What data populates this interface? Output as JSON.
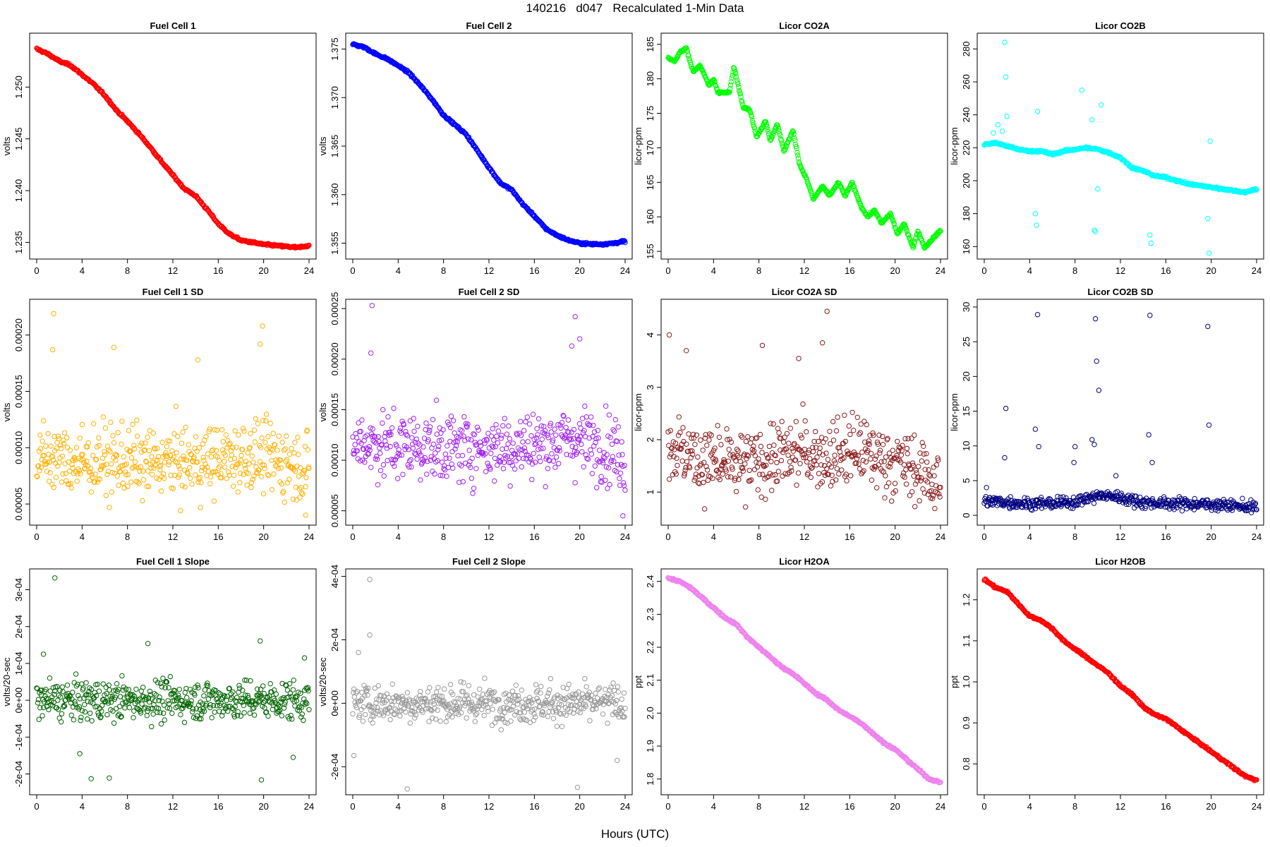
{
  "figure_title": "140216   d047   Recalculated 1-Min Data",
  "shared_xlabel": "Hours (UTC)",
  "chart_data": [
    {
      "type": "scatter",
      "title": "Fuel Cell 1",
      "ylabel": "volts",
      "color": "#ff0000",
      "xlim": [
        0,
        24
      ],
      "ylim": [
        1.2338,
        1.2548
      ],
      "xticks": [
        0,
        4,
        8,
        12,
        16,
        20,
        24
      ],
      "yticks": [
        1.235,
        1.24,
        1.245,
        1.25
      ],
      "ytick_labels": [
        "1.235",
        "1.240",
        "1.245",
        "1.250"
      ],
      "x": [
        0,
        1,
        2,
        3,
        4,
        5,
        6,
        7,
        8,
        9,
        10,
        11,
        12,
        13,
        14,
        15,
        16,
        17,
        18,
        19,
        20,
        21,
        22,
        23,
        24
      ],
      "y": [
        1.2537,
        1.2532,
        1.2525,
        1.2521,
        1.2512,
        1.2503,
        1.2492,
        1.2478,
        1.2467,
        1.2455,
        1.2442,
        1.2428,
        1.2415,
        1.2402,
        1.2395,
        1.2382,
        1.2368,
        1.2358,
        1.2352,
        1.235,
        1.2348,
        1.2347,
        1.2346,
        1.2345,
        1.2347
      ]
    },
    {
      "type": "scatter",
      "title": "Fuel Cell 2",
      "ylabel": "volts",
      "color": "#0000ff",
      "xlim": [
        0,
        24
      ],
      "ylim": [
        1.3538,
        1.3762
      ],
      "xticks": [
        0,
        4,
        8,
        12,
        16,
        20,
        24
      ],
      "yticks": [
        1.355,
        1.36,
        1.365,
        1.37,
        1.375
      ],
      "ytick_labels": [
        "1.355",
        "1.360",
        "1.365",
        "1.370",
        "1.375"
      ],
      "x": [
        0,
        1,
        2,
        3,
        4,
        5,
        6,
        7,
        8,
        9,
        10,
        11,
        12,
        13,
        14,
        15,
        16,
        17,
        18,
        19,
        20,
        21,
        22,
        23,
        24
      ],
      "y": [
        1.3755,
        1.3752,
        1.3745,
        1.374,
        1.3733,
        1.3725,
        1.3712,
        1.3698,
        1.3682,
        1.3672,
        1.3662,
        1.3645,
        1.3628,
        1.3612,
        1.3605,
        1.359,
        1.3578,
        1.3565,
        1.3558,
        1.3553,
        1.355,
        1.3549,
        1.3549,
        1.355,
        1.3552
      ]
    },
    {
      "type": "scatter",
      "title": "Licor CO2A",
      "ylabel": "licor-ppm",
      "color": "#00ff00",
      "xlim": [
        0,
        24
      ],
      "ylim": [
        154.5,
        186
      ],
      "xticks": [
        0,
        4,
        8,
        12,
        16,
        20,
        24
      ],
      "yticks": [
        155,
        160,
        165,
        170,
        175,
        180,
        185
      ],
      "ytick_labels": [
        "155",
        "160",
        "165",
        "170",
        "175",
        "180",
        "185"
      ],
      "x": [
        0,
        0.6,
        1.0,
        1.6,
        2.2,
        2.8,
        3.6,
        4.0,
        4.4,
        5.4,
        5.8,
        6.6,
        7.2,
        7.8,
        8.6,
        9.0,
        9.6,
        10.2,
        11.0,
        11.6,
        12.2,
        12.8,
        13.6,
        14.2,
        15.0,
        15.6,
        16.2,
        17.0,
        17.6,
        18.2,
        18.8,
        19.6,
        20.2,
        20.8,
        21.6,
        22.0,
        22.6,
        23.4,
        24
      ],
      "y": [
        183.0,
        182.5,
        183.8,
        184.5,
        181.0,
        182.0,
        179.0,
        180.0,
        178.0,
        178.0,
        181.8,
        176.0,
        175.5,
        171.5,
        174.0,
        171.0,
        173.5,
        169.5,
        172.5,
        167.5,
        165.5,
        162.5,
        164.5,
        163.0,
        165.0,
        163.0,
        165.0,
        161.5,
        160.0,
        161.0,
        159.0,
        160.5,
        157.5,
        159.0,
        155.5,
        158.0,
        155.5,
        157.0,
        158.0
      ]
    },
    {
      "type": "scatter",
      "title": "Licor CO2B",
      "ylabel": "licor-ppm",
      "color": "#00ffff",
      "xlim": [
        0,
        24
      ],
      "ylim": [
        155,
        287
      ],
      "xticks": [
        0,
        4,
        8,
        12,
        16,
        20,
        24
      ],
      "yticks": [
        160,
        180,
        200,
        220,
        240,
        260,
        280
      ],
      "ytick_labels": [
        "160",
        "180",
        "200",
        "220",
        "240",
        "260",
        "280"
      ],
      "x": [
        0,
        1,
        2,
        3,
        4,
        5,
        6,
        7,
        8,
        9,
        10,
        11,
        12,
        13,
        14,
        15,
        16,
        17,
        18,
        19,
        20,
        21,
        22,
        23,
        24
      ],
      "y": [
        222,
        223,
        221,
        219,
        218,
        218,
        216,
        218,
        219,
        220,
        219,
        217,
        214,
        208,
        206,
        203,
        202,
        200,
        198,
        197,
        196,
        195,
        194,
        193,
        195
      ],
      "outliers_x": [
        1.8,
        1.9,
        4.5,
        4.6,
        4.7,
        9.7,
        9.8,
        10.0,
        14.6,
        14.7,
        19.8,
        19.9,
        1.6,
        2.0,
        9.5,
        10.3,
        8.6,
        0.8,
        1.2,
        19.7
      ],
      "outliers_y": [
        284,
        263,
        180,
        173,
        242,
        170,
        169,
        195,
        167,
        162,
        156,
        224,
        230,
        239,
        237,
        246,
        255,
        229,
        234,
        177
      ]
    },
    {
      "type": "scatter",
      "title": "Fuel Cell 1 SD",
      "ylabel": "volts",
      "color": "#ffb000",
      "xlim": [
        0,
        24
      ],
      "ylim": [
        3.5e-05,
        0.000228
      ],
      "xticks": [
        0,
        4,
        8,
        12,
        16,
        20,
        24
      ],
      "yticks": [
        5e-05,
        0.0001,
        0.00015,
        0.0002
      ],
      "ytick_labels": [
        "0.00005",
        "0.00010",
        "0.00015",
        "0.00020"
      ],
      "x": [
        0,
        1,
        2,
        3,
        4,
        5,
        6,
        7,
        8,
        9,
        10,
        11,
        12,
        13,
        14,
        15,
        16,
        17,
        18,
        19,
        20,
        21,
        22,
        23,
        24
      ],
      "y": [
        8.8e-05,
        9.2e-05,
        9e-05,
        8.7e-05,
        8.6e-05,
        8.9e-05,
        8.8e-05,
        8.7e-05,
        8.9e-05,
        8.6e-05,
        8.5e-05,
        8.7e-05,
        8.8e-05,
        8.6e-05,
        8.7e-05,
        8.8e-05,
        8.9e-05,
        9e-05,
        9.2e-05,
        9.4e-05,
        9.1e-05,
        8.9e-05,
        8.7e-05,
        8.5e-05,
        8e-05
      ],
      "spread": 2.6e-05,
      "outliers_x": [
        1.5,
        1.4,
        6.8,
        19.9,
        19.7,
        14.2,
        23.7
      ],
      "outliers_y": [
        0.000219,
        0.000187,
        0.000189,
        0.000208,
        0.000192,
        0.000178,
        4e-05
      ]
    },
    {
      "type": "scatter",
      "title": "Fuel Cell 2 SD",
      "ylabel": "volts",
      "color": "#a020f0",
      "xlim": [
        0,
        24
      ],
      "ylim": [
        4e-05,
        0.000255
      ],
      "xticks": [
        0,
        4,
        8,
        12,
        16,
        20,
        24
      ],
      "yticks": [
        5e-05,
        0.0001,
        0.00015,
        0.0002,
        0.00025
      ],
      "ytick_labels": [
        "0.00005",
        "0.00010",
        "0.00015",
        "0.00020",
        "0.00025"
      ],
      "x": [
        0,
        1,
        2,
        3,
        4,
        5,
        6,
        7,
        8,
        9,
        10,
        11,
        12,
        13,
        14,
        15,
        16,
        17,
        18,
        19,
        20,
        21,
        22,
        23,
        24
      ],
      "y": [
        0.000115,
        0.000118,
        0.000117,
        0.000114,
        0.000113,
        0.000115,
        0.000114,
        0.000112,
        0.000113,
        0.000111,
        0.000112,
        0.000113,
        0.000112,
        0.000114,
        0.000113,
        0.000115,
        0.000116,
        0.000117,
        0.000119,
        0.000121,
        0.00012,
        0.000117,
        0.000113,
        0.00011,
        0.0001
      ],
      "spread": 2.8e-05,
      "outliers_x": [
        1.7,
        1.6,
        19.6,
        20.0,
        19.3,
        23.8
      ],
      "outliers_y": [
        0.000253,
        0.000206,
        0.000242,
        0.00022,
        0.000213,
        4.5e-05
      ]
    },
    {
      "type": "scatter",
      "title": "Licor CO2A SD",
      "ylabel": "licor-ppm",
      "color": "#8b1a1a",
      "xlim": [
        0,
        24
      ],
      "ylim": [
        0.45,
        4.6
      ],
      "xticks": [
        0,
        4,
        8,
        12,
        16,
        20,
        24
      ],
      "yticks": [
        1,
        2,
        3,
        4
      ],
      "ytick_labels": [
        "1",
        "2",
        "3",
        "4"
      ],
      "x": [
        0,
        1,
        2,
        3,
        4,
        5,
        6,
        7,
        8,
        9,
        10,
        11,
        12,
        13,
        14,
        15,
        16,
        17,
        18,
        19,
        20,
        21,
        22,
        23,
        24
      ],
      "y": [
        1.9,
        1.8,
        1.7,
        1.6,
        1.6,
        1.5,
        1.5,
        1.5,
        1.6,
        1.6,
        1.7,
        1.7,
        1.8,
        1.7,
        1.7,
        1.7,
        1.8,
        1.8,
        1.7,
        1.6,
        1.6,
        1.5,
        1.4,
        1.3,
        1.1
      ],
      "spread": 0.55,
      "outliers_x": [
        0.1,
        14.0,
        11.5,
        8.3,
        1.6,
        13.6
      ],
      "outliers_y": [
        4.0,
        4.45,
        3.55,
        3.8,
        3.7,
        3.85
      ]
    },
    {
      "type": "scatter",
      "title": "Licor CO2B SD",
      "ylabel": "licor-ppm",
      "color": "#000080",
      "xlim": [
        0,
        24
      ],
      "ylim": [
        -0.8,
        30.5
      ],
      "xticks": [
        0,
        4,
        8,
        12,
        16,
        20,
        24
      ],
      "yticks": [
        0,
        5,
        10,
        15,
        20,
        25,
        30
      ],
      "ytick_labels": [
        "0",
        "5",
        "10",
        "15",
        "20",
        "25",
        "30"
      ],
      "x": [
        0,
        1,
        2,
        3,
        4,
        5,
        6,
        7,
        8,
        9,
        10,
        11,
        12,
        13,
        14,
        15,
        16,
        17,
        18,
        19,
        20,
        21,
        22,
        23,
        24
      ],
      "y": [
        2.0,
        2.0,
        1.9,
        1.8,
        1.7,
        1.7,
        1.7,
        1.8,
        2.0,
        2.4,
        2.8,
        2.8,
        2.6,
        2.2,
        1.9,
        1.8,
        1.7,
        1.7,
        1.7,
        1.6,
        1.6,
        1.5,
        1.4,
        1.3,
        1.1
      ],
      "spread": 0.7,
      "outliers_x": [
        4.7,
        9.8,
        9.9,
        14.6,
        19.7,
        1.9,
        4.5,
        1.8,
        10.1,
        19.8,
        14.5,
        4.8,
        9.5,
        7.9,
        8.0,
        9.7,
        11.6,
        14.8,
        0.2
      ],
      "outliers_y": [
        28.9,
        28.3,
        22.2,
        28.8,
        27.2,
        15.4,
        12.4,
        8.3,
        18.0,
        13.0,
        11.6,
        9.9,
        10.9,
        7.6,
        9.9,
        10.2,
        5.7,
        7.6,
        4.0
      ]
    },
    {
      "type": "scatter",
      "title": "Fuel Cell 1 Slope",
      "ylabel": "volts/20-sec",
      "color": "#006400",
      "xlim": [
        0,
        24
      ],
      "ylim": [
        -0.000245,
        0.000345
      ],
      "xticks": [
        0,
        4,
        8,
        12,
        16,
        20,
        24
      ],
      "yticks": [
        -0.0002,
        -0.0001,
        0,
        0.0001,
        0.0002,
        0.0003
      ],
      "ytick_labels": [
        "-2e-04",
        "-1e-04",
        "0e+00",
        "1e-04",
        "2e-04",
        "3e-04"
      ],
      "x": [
        0,
        2,
        4,
        6,
        8,
        10,
        12,
        14,
        16,
        18,
        20,
        22,
        24
      ],
      "y": [
        0,
        0,
        0,
        0,
        0,
        0,
        0,
        0,
        0,
        0,
        0,
        0,
        0
      ],
      "spread": 4.5e-05,
      "outliers_x": [
        1.6,
        4.8,
        6.4,
        19.7,
        19.8,
        9.8,
        0.6,
        3.8,
        22.6,
        23.6
      ],
      "outliers_y": [
        0.000332,
        -0.000213,
        -0.000211,
        0.000161,
        -0.000216,
        0.000154,
        0.000125,
        -0.000145,
        -0.000155,
        0.000115
      ]
    },
    {
      "type": "scatter",
      "title": "Fuel Cell 2 Slope",
      "ylabel": "volts/20-sec",
      "color": "#999999",
      "xlim": [
        0,
        24
      ],
      "ylim": [
        -0.000275,
        0.00041
      ],
      "xticks": [
        0,
        4,
        8,
        12,
        16,
        20,
        24
      ],
      "yticks": [
        -0.0002,
        0,
        0.0002,
        0.0004
      ],
      "ytick_labels": [
        "-2e-04",
        "0e+00",
        "2e-04",
        "4e-04"
      ],
      "x": [
        0,
        2,
        4,
        6,
        8,
        10,
        12,
        14,
        16,
        18,
        20,
        22,
        24
      ],
      "y": [
        0,
        0,
        0,
        0,
        0,
        0,
        0,
        0,
        0,
        0,
        0,
        0,
        0
      ],
      "spread": 5.2e-05,
      "outliers_x": [
        1.5,
        1.5,
        4.8,
        19.8,
        0.5,
        23.3,
        0.1
      ],
      "outliers_y": [
        0.00039,
        0.000215,
        -0.00027,
        -0.000265,
        0.00016,
        -0.00018,
        -0.000165
      ]
    },
    {
      "type": "scatter",
      "title": "Licor H2OA",
      "ylabel": "ppt",
      "color": "#ee82ee",
      "xlim": [
        0,
        24
      ],
      "ylim": [
        1.765,
        2.425
      ],
      "xticks": [
        0,
        4,
        8,
        12,
        16,
        20,
        24
      ],
      "yticks": [
        1.8,
        1.9,
        2.0,
        2.1,
        2.2,
        2.3,
        2.4
      ],
      "ytick_labels": [
        "1.8",
        "1.9",
        "2.0",
        "2.1",
        "2.2",
        "2.3",
        "2.4"
      ],
      "x": [
        0,
        1,
        2,
        3,
        4,
        5,
        6,
        7,
        8,
        9,
        10,
        11,
        12,
        13,
        14,
        15,
        16,
        17,
        18,
        19,
        20,
        21,
        22,
        23,
        24
      ],
      "y": [
        2.41,
        2.4,
        2.38,
        2.35,
        2.32,
        2.29,
        2.27,
        2.23,
        2.2,
        2.17,
        2.14,
        2.12,
        2.09,
        2.06,
        2.04,
        2.01,
        1.99,
        1.97,
        1.94,
        1.91,
        1.89,
        1.86,
        1.83,
        1.8,
        1.79
      ]
    },
    {
      "type": "scatter",
      "title": "Licor H2OB",
      "ylabel": "ppt",
      "color": "#ff0000",
      "xlim": [
        0,
        24
      ],
      "ylim": [
        0.735,
        1.265
      ],
      "xticks": [
        0,
        4,
        8,
        12,
        16,
        20,
        24
      ],
      "yticks": [
        0.8,
        0.9,
        1.0,
        1.1,
        1.2
      ],
      "ytick_labels": [
        "0.8",
        "0.9",
        "1.0",
        "1.1",
        "1.2"
      ],
      "x": [
        0,
        1,
        2,
        3,
        4,
        5,
        6,
        7,
        8,
        9,
        10,
        11,
        12,
        13,
        14,
        15,
        16,
        17,
        18,
        19,
        20,
        21,
        22,
        23,
        24
      ],
      "y": [
        1.25,
        1.23,
        1.22,
        1.19,
        1.16,
        1.15,
        1.13,
        1.1,
        1.08,
        1.06,
        1.04,
        1.02,
        0.99,
        0.97,
        0.94,
        0.92,
        0.91,
        0.89,
        0.87,
        0.85,
        0.83,
        0.81,
        0.79,
        0.77,
        0.76
      ]
    }
  ]
}
